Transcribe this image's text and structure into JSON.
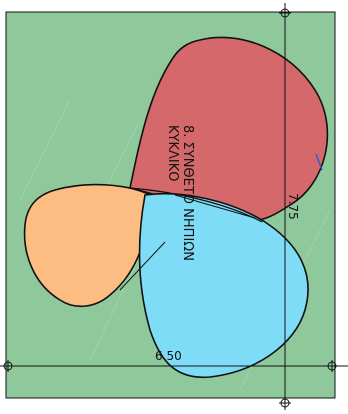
{
  "title": {
    "line1": "8. ΣΥΝΘΕΤΟ ΝΗΠΙΩΝ",
    "line2": "ΚΥΚΛΙΚΟ"
  },
  "dimensions": {
    "horizontal": "6.50",
    "vertical": "7.75"
  },
  "colors": {
    "background": "#ffffff",
    "lawn": "#8fc99b",
    "pool_red": "#d4686a",
    "pool_orange": "#fbbd82",
    "pool_blue": "#7fdcf7",
    "outline": "#111111"
  }
}
